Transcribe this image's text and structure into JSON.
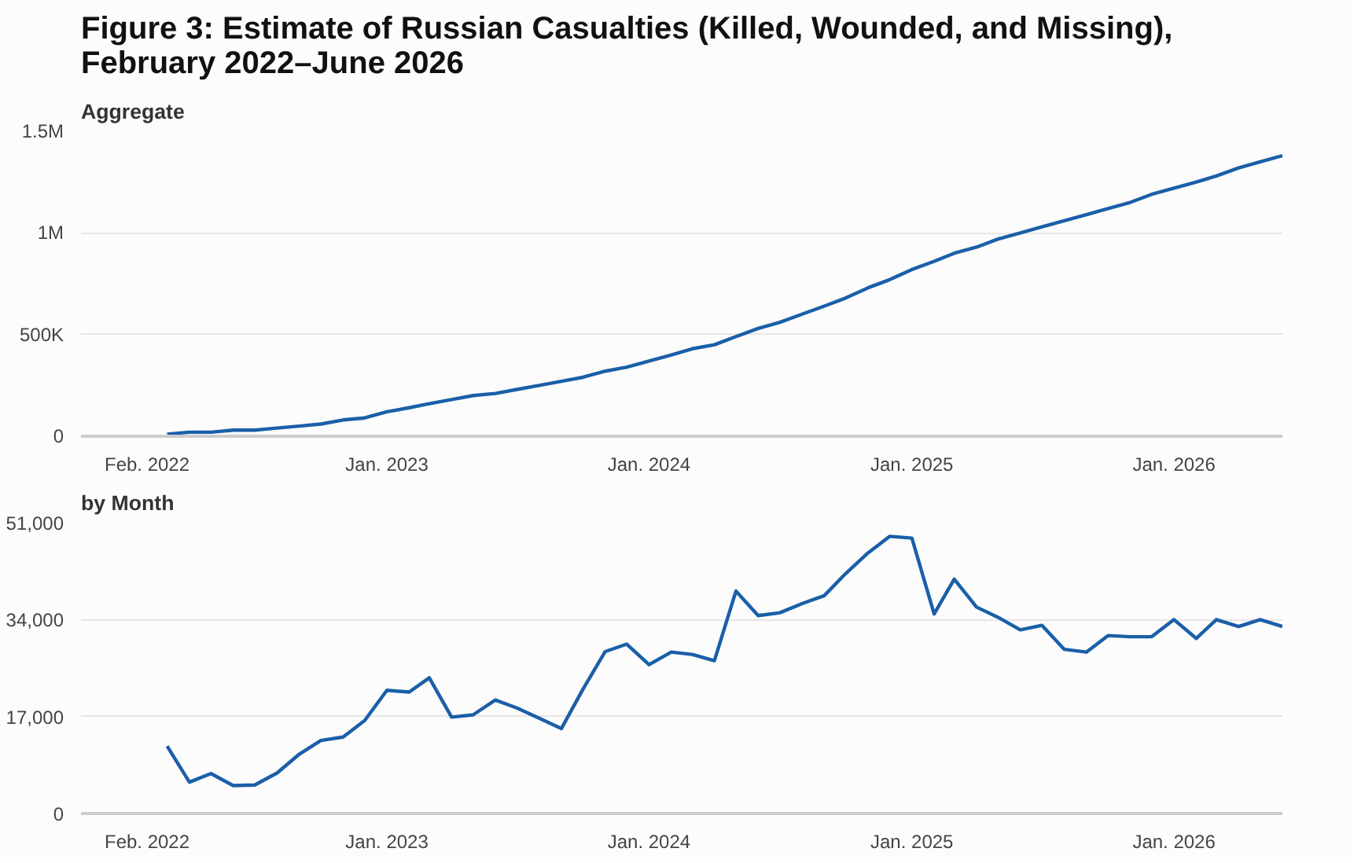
{
  "chart_data": [
    {
      "type": "line",
      "title": "Figure 3: Estimate of Russian Casualties (Killed, Wounded, and Missing),\nFebruary 2022–June 2026",
      "subtitle": "Aggregate",
      "x": [
        "2022-03",
        "2022-04",
        "2022-05",
        "2022-06",
        "2022-07",
        "2022-08",
        "2022-09",
        "2022-10",
        "2022-11",
        "2022-12",
        "2023-01",
        "2023-02",
        "2023-03",
        "2023-04",
        "2023-05",
        "2023-06",
        "2023-07",
        "2023-08",
        "2023-09",
        "2023-10",
        "2023-11",
        "2023-12",
        "2024-01",
        "2024-02",
        "2024-03",
        "2024-04",
        "2024-05",
        "2024-06",
        "2024-07",
        "2024-08",
        "2024-09",
        "2024-10",
        "2024-11",
        "2024-12",
        "2025-01",
        "2025-02",
        "2025-03",
        "2025-04",
        "2025-05",
        "2025-06",
        "2025-07",
        "2025-08",
        "2025-09",
        "2025-10",
        "2025-11",
        "2025-12",
        "2026-01",
        "2026-02",
        "2026-03",
        "2026-04",
        "2026-05",
        "2026-06"
      ],
      "series": [
        {
          "color": "#1a5fa8",
          "values": [
            10000,
            20000,
            20000,
            30000,
            30000,
            40000,
            50000,
            60000,
            80000,
            90000,
            120000,
            140000,
            160000,
            180000,
            200000,
            210000,
            230000,
            250000,
            270000,
            290000,
            320000,
            340000,
            370000,
            400000,
            430000,
            450000,
            490000,
            530000,
            560000,
            600000,
            640000,
            680000,
            730000,
            770000,
            820000,
            860000,
            900000,
            930000,
            970000,
            1000000,
            1030000,
            1060000,
            1090000,
            1120000,
            1150000,
            1190000,
            1220000,
            1250000,
            1280000,
            1320000,
            1350000,
            1380000
          ]
        }
      ],
      "xlim": [
        "2021-11",
        "2026-06"
      ],
      "xticks": [
        {
          "value": "2022-02",
          "label": "Feb. 2022"
        },
        {
          "value": "2023-01",
          "label": "Jan. 2023"
        },
        {
          "value": "2024-01",
          "label": "Jan. 2024"
        },
        {
          "value": "2025-01",
          "label": "Jan. 2025"
        },
        {
          "value": "2026-01",
          "label": "Jan. 2026"
        }
      ],
      "ylim": [
        0,
        1500000
      ],
      "yticks": [
        0,
        {
          "value": 500000,
          "label": "500K"
        },
        {
          "value": 1000000,
          "label": "1M"
        },
        {
          "value": 1500000,
          "label": "1.5M"
        }
      ],
      "grid": "y",
      "marker": "none",
      "line_style": "solid"
    },
    {
      "type": "line",
      "subtitle": "by Month",
      "x": [
        "2022-03",
        "2022-04",
        "2022-05",
        "2022-06",
        "2022-07",
        "2022-08",
        "2022-09",
        "2022-10",
        "2022-11",
        "2022-12",
        "2023-01",
        "2023-02",
        "2023-03",
        "2023-04",
        "2023-05",
        "2023-06",
        "2023-07",
        "2023-08",
        "2023-09",
        "2023-10",
        "2023-11",
        "2023-12",
        "2024-01",
        "2024-02",
        "2024-03",
        "2024-04",
        "2024-05",
        "2024-06",
        "2024-07",
        "2024-08",
        "2024-09",
        "2024-10",
        "2024-11",
        "2024-12",
        "2025-01",
        "2025-02",
        "2025-03",
        "2025-04",
        "2025-05",
        "2025-06",
        "2025-07",
        "2025-08",
        "2025-09",
        "2025-10",
        "2025-11",
        "2025-12",
        "2026-01",
        "2026-02",
        "2026-03",
        "2026-04",
        "2026-05",
        "2026-06"
      ],
      "series": [
        {
          "color": "#1a5fa8",
          "values": [
            11800,
            5500,
            7000,
            4900,
            5000,
            7100,
            10400,
            12800,
            13400,
            16300,
            21600,
            21300,
            23800,
            16900,
            17300,
            19900,
            18500,
            16700,
            14900,
            21800,
            28400,
            29700,
            26100,
            28300,
            27900,
            26800,
            39000,
            34700,
            35200,
            36800,
            38200,
            42100,
            45700,
            48600,
            48300,
            35000,
            41100,
            36200,
            34400,
            32200,
            33000,
            28800,
            28300,
            31200,
            31000,
            31000,
            34000,
            30700,
            34000,
            32800,
            34000,
            32800
          ]
        }
      ],
      "xlim": [
        "2021-11",
        "2026-06"
      ],
      "xticks": [
        {
          "value": "2022-02",
          "label": "Feb. 2022"
        },
        {
          "value": "2023-01",
          "label": "Jan. 2023"
        },
        {
          "value": "2024-01",
          "label": "Jan. 2024"
        },
        {
          "value": "2025-01",
          "label": "Jan. 2025"
        },
        {
          "value": "2026-01",
          "label": "Jan. 2026"
        }
      ],
      "ylim": [
        0,
        51000
      ],
      "yticks": [
        0,
        {
          "value": 17000,
          "label": "17,000"
        },
        {
          "value": 34000,
          "label": "34,000"
        },
        {
          "value": 51000,
          "label": "51,000"
        }
      ],
      "grid": "y",
      "marker": "none",
      "line_style": "solid"
    }
  ]
}
